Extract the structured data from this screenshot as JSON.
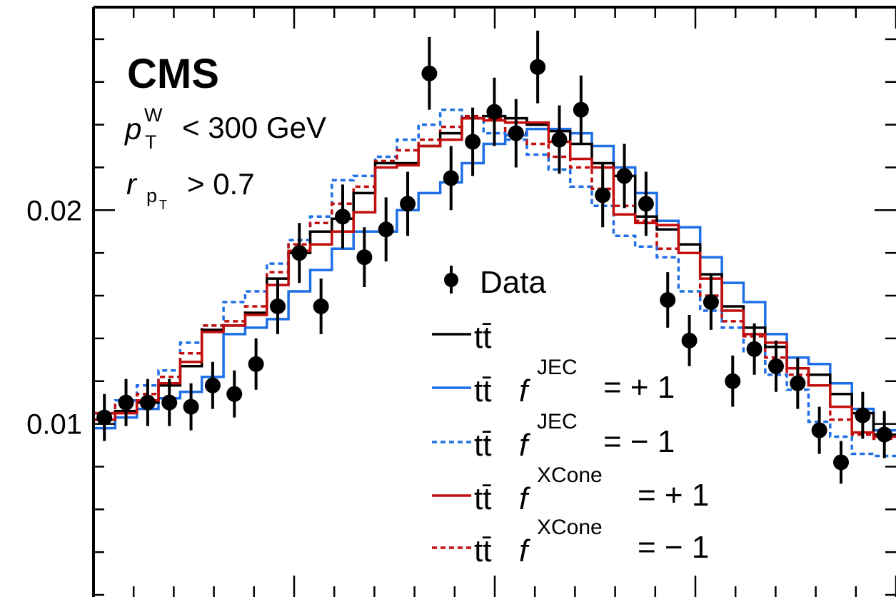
{
  "chart_data": {
    "type": "line",
    "experiment_label": "CMS",
    "annotations": {
      "line1": {
        "var": "p",
        "sup": "W",
        "sub": "T",
        "rest": "< 300 GeV"
      },
      "line2": {
        "var": "r",
        "sub": "p",
        "subsub": "T",
        "rest": "> 0.7"
      }
    },
    "y_ticks": [
      {
        "value": 0.01,
        "label": "0.01"
      },
      {
        "value": 0.02,
        "label": "0.02"
      }
    ],
    "ylim": [
      0.0019,
      0.0295
    ],
    "xlim": [
      0,
      1
    ],
    "grid": false,
    "legend": {
      "placement": "center-right",
      "entries": [
        {
          "series": "data",
          "text": "Data"
        },
        {
          "series": "nom",
          "main": "tt̄"
        },
        {
          "series": "jecup",
          "main": "tt̄",
          "f": "f",
          "sup": "JEC",
          "rest": "= + 1"
        },
        {
          "series": "jecdn",
          "main": "tt̄",
          "f": "f",
          "sup": "JEC",
          "rest": "= − 1"
        },
        {
          "series": "xcup",
          "main": "tt̄",
          "f": "f",
          "sup": "XCone",
          "rest": "= + 1"
        },
        {
          "series": "xcdn",
          "main": "tt̄",
          "f": "f",
          "sup": "XCone",
          "rest": "= − 1"
        }
      ]
    },
    "bin_edges": [
      0,
      0.027,
      0.054,
      0.081,
      0.108,
      0.135,
      0.162,
      0.189,
      0.216,
      0.243,
      0.27,
      0.297,
      0.324,
      0.351,
      0.378,
      0.405,
      0.432,
      0.459,
      0.486,
      0.513,
      0.54,
      0.567,
      0.594,
      0.621,
      0.648,
      0.675,
      0.702,
      0.729,
      0.756,
      0.783,
      0.81,
      0.837,
      0.864,
      0.891,
      0.918,
      0.945,
      0.972,
      1.0
    ],
    "series": [
      {
        "id": "nom",
        "color": "#000000",
        "dash": "solid",
        "values": [
          0.0102,
          0.0106,
          0.011,
          0.0118,
          0.0127,
          0.0144,
          0.0146,
          0.0152,
          0.0168,
          0.018,
          0.019,
          0.0196,
          0.0208,
          0.0222,
          0.0222,
          0.023,
          0.0236,
          0.0243,
          0.0244,
          0.0243,
          0.024,
          0.0237,
          0.0231,
          0.0222,
          0.0216,
          0.0197,
          0.0191,
          0.0184,
          0.017,
          0.0155,
          0.0145,
          0.0136,
          0.0126,
          0.0123,
          0.0114,
          0.0105,
          0.0095
        ]
      },
      {
        "id": "jecup",
        "color": "#1e6fe6",
        "dash": "solid",
        "values": [
          0.0098,
          0.0103,
          0.0107,
          0.0112,
          0.0115,
          0.0122,
          0.0142,
          0.0145,
          0.0149,
          0.0162,
          0.0172,
          0.0182,
          0.019,
          0.019,
          0.02,
          0.0208,
          0.0213,
          0.0222,
          0.0231,
          0.0235,
          0.0238,
          0.0238,
          0.0236,
          0.023,
          0.022,
          0.0208,
          0.0195,
          0.0192,
          0.0178,
          0.0166,
          0.0157,
          0.0142,
          0.0131,
          0.0128,
          0.0119,
          0.0107,
          0.0097
        ]
      },
      {
        "id": "jecdn",
        "color": "#1e6fe6",
        "dash": "dotted",
        "values": [
          0.0105,
          0.0111,
          0.0118,
          0.0125,
          0.0138,
          0.0146,
          0.0157,
          0.0162,
          0.0175,
          0.0186,
          0.0197,
          0.0214,
          0.0216,
          0.0225,
          0.0233,
          0.024,
          0.0247,
          0.0243,
          0.0236,
          0.0233,
          0.0226,
          0.0219,
          0.0211,
          0.0202,
          0.0188,
          0.0183,
          0.0178,
          0.0162,
          0.0153,
          0.0145,
          0.0134,
          0.0123,
          0.0116,
          0.0101,
          0.0094,
          0.0086,
          0.0085
        ]
      },
      {
        "id": "xcup",
        "color": "#c20e0e",
        "dash": "solid",
        "values": [
          0.0102,
          0.0105,
          0.0111,
          0.0119,
          0.0129,
          0.0143,
          0.0146,
          0.0151,
          0.0165,
          0.0181,
          0.0184,
          0.019,
          0.0199,
          0.022,
          0.0221,
          0.023,
          0.0233,
          0.0243,
          0.0242,
          0.0241,
          0.0241,
          0.0232,
          0.0224,
          0.022,
          0.0198,
          0.0194,
          0.0193,
          0.018,
          0.0168,
          0.0153,
          0.0142,
          0.0138,
          0.0126,
          0.0118,
          0.0108,
          0.0096,
          0.0094
        ]
      },
      {
        "id": "xcdn",
        "color": "#c20e0e",
        "dash": "dotted",
        "values": [
          0.0105,
          0.0109,
          0.0114,
          0.0122,
          0.0133,
          0.0146,
          0.0148,
          0.0155,
          0.0171,
          0.0184,
          0.0194,
          0.0203,
          0.0211,
          0.0223,
          0.0228,
          0.0233,
          0.0239,
          0.0244,
          0.0243,
          0.0236,
          0.0231,
          0.0225,
          0.022,
          0.021,
          0.0202,
          0.0195,
          0.0182,
          0.018,
          0.016,
          0.0148,
          0.0141,
          0.0131,
          0.0123,
          0.0118,
          0.0102,
          0.0095,
          0.0093
        ]
      }
    ],
    "data_points": {
      "color": "#000000",
      "x": [
        0.0135,
        0.0405,
        0.0675,
        0.0945,
        0.1215,
        0.1485,
        0.1755,
        0.2025,
        0.2295,
        0.2565,
        0.2835,
        0.3105,
        0.3375,
        0.3645,
        0.3915,
        0.4185,
        0.4455,
        0.4725,
        0.4995,
        0.5265,
        0.5535,
        0.5805,
        0.6075,
        0.6345,
        0.6615,
        0.6885,
        0.7155,
        0.7425,
        0.7695,
        0.7965,
        0.8235,
        0.8505,
        0.8775,
        0.9045,
        0.9315,
        0.9585,
        0.9855
      ],
      "y": [
        0.0103,
        0.011,
        0.011,
        0.011,
        0.0108,
        0.0118,
        0.0114,
        0.0128,
        0.0155,
        0.018,
        0.0155,
        0.0197,
        0.0178,
        0.0191,
        0.0203,
        0.0264,
        0.0215,
        0.0232,
        0.0246,
        0.0236,
        0.0267,
        0.0233,
        0.0247,
        0.0207,
        0.0216,
        0.0203,
        0.0158,
        0.0139,
        0.0157,
        0.012,
        0.0135,
        0.0127,
        0.0119,
        0.0097,
        0.0082,
        0.0104,
        0.0095
      ],
      "err": [
        0.0011,
        0.0011,
        0.0011,
        0.0011,
        0.0011,
        0.0011,
        0.0011,
        0.0012,
        0.0013,
        0.0014,
        0.0013,
        0.0015,
        0.0014,
        0.0015,
        0.0015,
        0.0017,
        0.0015,
        0.0016,
        0.0016,
        0.0016,
        0.0017,
        0.0016,
        0.0016,
        0.0015,
        0.0015,
        0.0015,
        0.0013,
        0.0012,
        0.0013,
        0.0012,
        0.0012,
        0.0012,
        0.0012,
        0.0011,
        0.001,
        0.0011,
        0.0011
      ]
    }
  }
}
